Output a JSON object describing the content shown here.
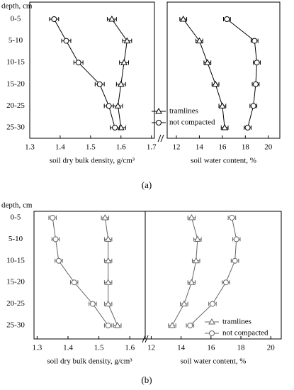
{
  "captions": [
    "(a)",
    "(b)"
  ],
  "chart_data": [
    {
      "type": "line",
      "orientation": "horizontal",
      "ylabel": "depth, cm",
      "categories": [
        "0-5",
        "5-10",
        "10-15",
        "15-20",
        "20-25",
        "25-30"
      ],
      "xlabel": "soil dry bulk density, g/cm³",
      "xlim": [
        1.3,
        1.71
      ],
      "xticks": [
        1.3,
        1.4,
        1.5,
        1.6,
        1.7
      ],
      "series": [
        {
          "marker": "triangle",
          "color": "#000000",
          "values": [
            1.57,
            1.62,
            1.61,
            1.6,
            1.59,
            1.6
          ],
          "errors": [
            0.015,
            0.015,
            0.015,
            0.015,
            0.015,
            0.015
          ]
        },
        {
          "marker": "circle",
          "color": "#000000",
          "values": [
            1.38,
            1.42,
            1.46,
            1.53,
            1.56,
            1.58
          ],
          "errors": [
            0.015,
            0.015,
            0.015,
            0.015,
            0.015,
            0.015
          ]
        }
      ]
    },
    {
      "type": "line",
      "orientation": "horizontal",
      "xlabel": "soil water content, %",
      "xlim": [
        11.2,
        21
      ],
      "xticks": [
        12,
        14,
        16,
        18,
        20
      ],
      "legend": "lower left",
      "series": [
        {
          "name": "tramlines",
          "marker": "triangle",
          "color": "#000000",
          "values": [
            12.6,
            14.0,
            14.7,
            15.4,
            16.0,
            16.2
          ],
          "errors": [
            0.3,
            0.3,
            0.3,
            0.3,
            0.3,
            0.3
          ]
        },
        {
          "name": "not compacted",
          "marker": "circle",
          "color": "#000000",
          "values": [
            16.4,
            18.8,
            19.0,
            18.9,
            18.7,
            18.2
          ],
          "errors": [
            0.3,
            0.3,
            0.3,
            0.3,
            0.3,
            0.3
          ]
        }
      ]
    },
    {
      "type": "line",
      "orientation": "horizontal",
      "ylabel": "depth, cm",
      "categories": [
        "0-5",
        "5-10",
        "10-15",
        "15-20",
        "20-25",
        "25-30"
      ],
      "xlabel": "soil dry bulk density, g/cm³",
      "xlim": [
        1.29,
        1.65
      ],
      "xticks": [
        1.3,
        1.4,
        1.5,
        1.6
      ],
      "series": [
        {
          "marker": "triangle",
          "color": "#666666",
          "values": [
            1.52,
            1.53,
            1.53,
            1.53,
            1.53,
            1.56
          ],
          "errors": [
            0.012,
            0.012,
            0.012,
            0.012,
            0.012,
            0.012
          ]
        },
        {
          "marker": "circle",
          "color": "#666666",
          "values": [
            1.35,
            1.36,
            1.37,
            1.42,
            1.48,
            1.53
          ],
          "errors": [
            0.012,
            0.012,
            0.012,
            0.012,
            0.012,
            0.012
          ]
        }
      ]
    },
    {
      "type": "line",
      "orientation": "horizontal",
      "xlabel": "soil water content, %",
      "xlim": [
        11.6,
        20.7
      ],
      "xticks": [
        12,
        14,
        16,
        18,
        20
      ],
      "legend": "lower right",
      "series": [
        {
          "name": "tramlines",
          "marker": "triangle",
          "color": "#666666",
          "values": [
            14.7,
            15.1,
            15.0,
            14.7,
            14.2,
            13.4
          ],
          "errors": [
            0.25,
            0.25,
            0.25,
            0.25,
            0.25,
            0.25
          ]
        },
        {
          "name": "not compacted",
          "marker": "circle",
          "color": "#666666",
          "values": [
            17.4,
            17.7,
            17.6,
            17.0,
            16.1,
            14.6
          ],
          "errors": [
            0.25,
            0.25,
            0.25,
            0.25,
            0.25,
            0.25
          ]
        }
      ]
    }
  ]
}
